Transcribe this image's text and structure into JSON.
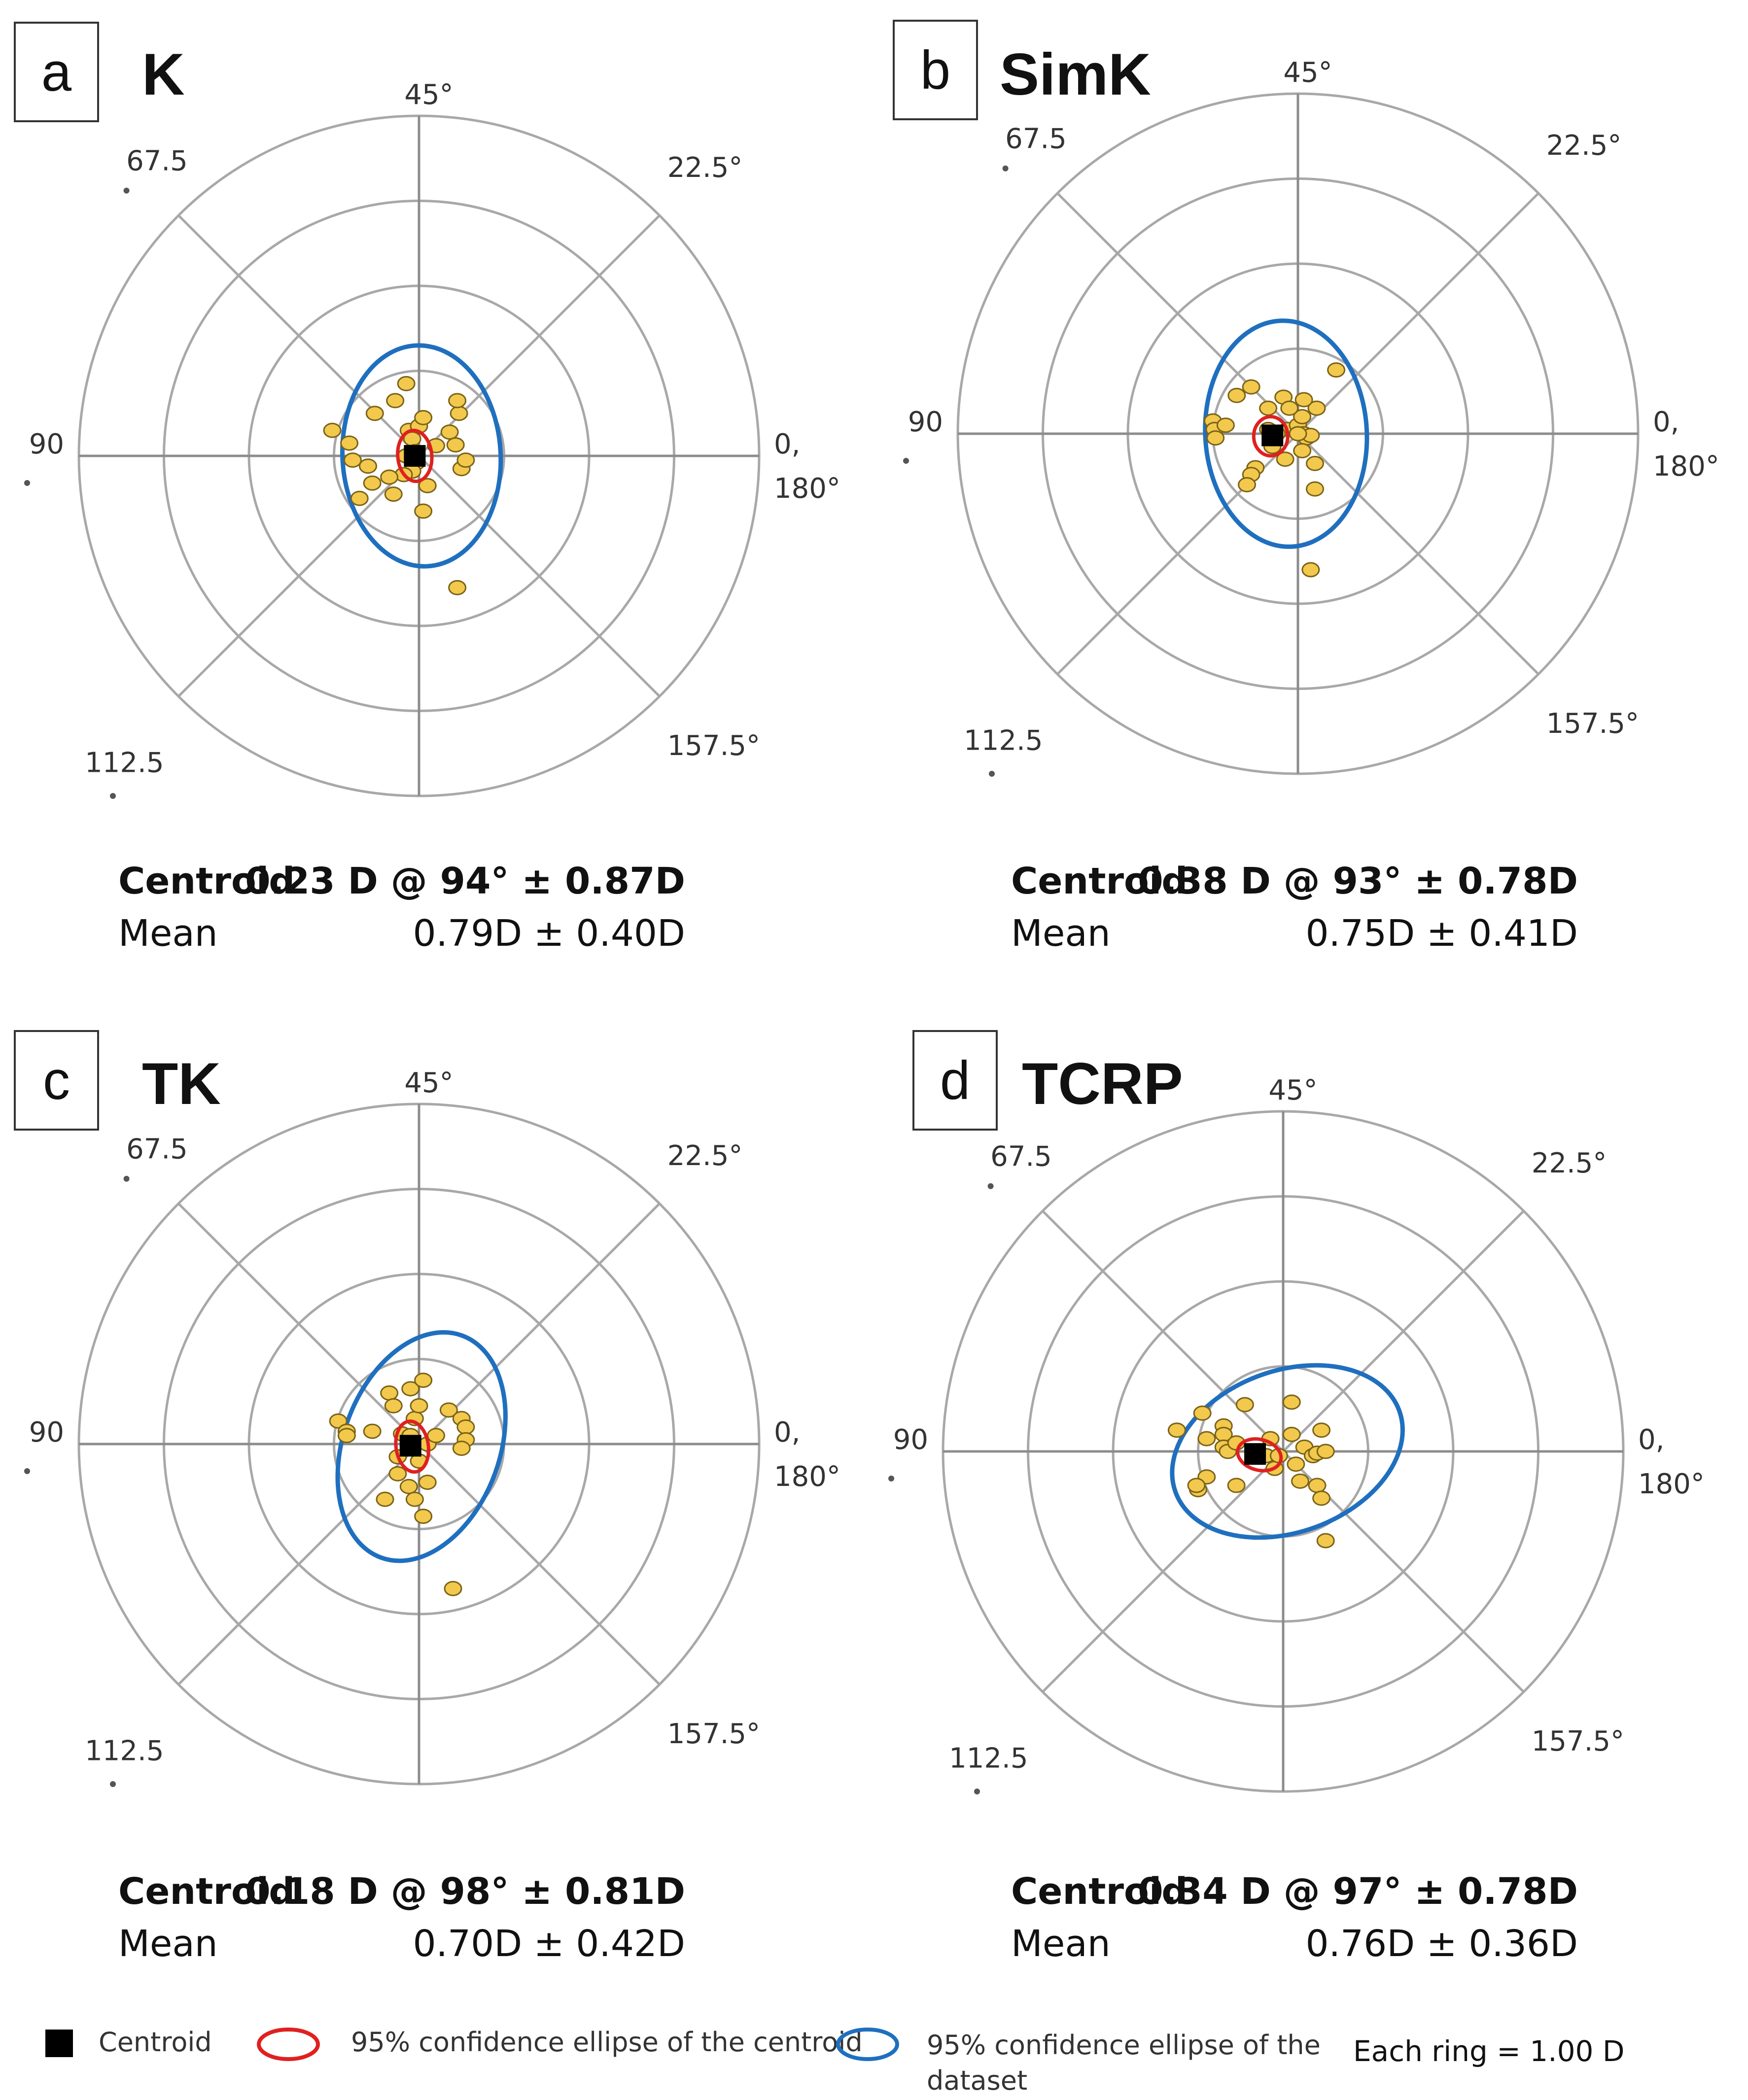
{
  "colors": {
    "grid": "#a8a8a8",
    "axis": "#8c8c8c",
    "point_fill": "#f2c94c",
    "point_stroke": "#7a6218",
    "centroid": "#000000",
    "ellipse_centroid": "#e02020",
    "ellipse_dataset": "#1f6fbf"
  },
  "legend": {
    "centroid": "Centroid",
    "centroid_ellipse": "95% confidence ellipse of the centroid",
    "dataset_ellipse_line1": "95% confidence ellipse of the",
    "dataset_ellipse_line2": "dataset",
    "ring_note": "Each ring = 1.00 D"
  },
  "chart_data": [
    {
      "type": "scatter",
      "subtype": "double-angle polar plot",
      "panel_letter": "a",
      "title": "K",
      "ring_step_D": 1.0,
      "rings": 4,
      "angle_labels": {
        "a45": "45°",
        "a22": "22.5°",
        "a0": "0,",
        "a180": "180°",
        "a157": "157.5°",
        "a112": "112.5",
        "a90": "90",
        "a67": "67.5"
      },
      "centroid_label": "Centroid",
      "centroid_value": "0.23 D @ 94° ± 0.87D",
      "mean_label": "Mean",
      "mean_value": "0.79D ± 0.40D",
      "centroid": {
        "x": -0.05,
        "y": 0.0
      },
      "centroid_ellipse": {
        "cx": -0.05,
        "cy": 0.0,
        "rx": 0.2,
        "ry": 0.3,
        "rot": -5
      },
      "dataset_ellipse": {
        "cx": 0.03,
        "cy": 0.0,
        "rx": 0.93,
        "ry": 1.3,
        "rot": -3
      },
      "points": [
        [
          -1.02,
          0.3
        ],
        [
          -0.82,
          0.15
        ],
        [
          -0.52,
          0.5
        ],
        [
          -0.28,
          0.65
        ],
        [
          -0.15,
          0.85
        ],
        [
          -0.12,
          0.3
        ],
        [
          -0.08,
          0.2
        ],
        [
          -0.05,
          0.05
        ],
        [
          -0.03,
          -0.08
        ],
        [
          -0.08,
          -0.18
        ],
        [
          -0.18,
          -0.22
        ],
        [
          -0.35,
          -0.25
        ],
        [
          -0.55,
          -0.32
        ],
        [
          -0.7,
          -0.5
        ],
        [
          -0.6,
          -0.12
        ],
        [
          -0.78,
          -0.05
        ],
        [
          0.0,
          0.35
        ],
        [
          0.05,
          0.45
        ],
        [
          0.2,
          0.12
        ],
        [
          0.1,
          -0.35
        ],
        [
          0.05,
          -0.65
        ],
        [
          0.36,
          0.28
        ],
        [
          0.43,
          0.13
        ],
        [
          0.47,
          0.5
        ],
        [
          0.45,
          0.65
        ],
        [
          0.5,
          -0.15
        ],
        [
          0.55,
          -0.05
        ],
        [
          -0.3,
          -0.45
        ],
        [
          0.45,
          -1.55
        ],
        [
          -0.15,
          -0.0
        ]
      ]
    },
    {
      "type": "scatter",
      "subtype": "double-angle polar plot",
      "panel_letter": "b",
      "title": "SimK",
      "ring_step_D": 1.0,
      "rings": 4,
      "angle_labels": {
        "a45": "45°",
        "a22": "22.5°",
        "a0": "0,",
        "a180": "180°",
        "a157": "157.5°",
        "a112": "112.5",
        "a90": "90",
        "a67": "67.5"
      },
      "centroid_label": "Centroid",
      "centroid_value": "0.38 D @ 93° ± 0.78D",
      "mean_label": "Mean",
      "mean_value": "0.75D ± 0.41D",
      "centroid": {
        "x": -0.3,
        "y": -0.02
      },
      "centroid_ellipse": {
        "cx": -0.32,
        "cy": -0.03,
        "rx": 0.2,
        "ry": 0.23,
        "rot": 0
      },
      "dataset_ellipse": {
        "cx": -0.14,
        "cy": 0.0,
        "rx": 0.95,
        "ry": 1.33,
        "rot": -3
      },
      "points": [
        [
          -1.0,
          0.15
        ],
        [
          -0.98,
          0.05
        ],
        [
          -0.97,
          -0.05
        ],
        [
          -0.85,
          0.1
        ],
        [
          -0.72,
          0.45
        ],
        [
          -0.55,
          0.55
        ],
        [
          -0.35,
          0.3
        ],
        [
          -0.35,
          0.05
        ],
        [
          -0.3,
          -0.15
        ],
        [
          -0.12,
          0.05
        ],
        [
          0.0,
          0.1
        ],
        [
          0.05,
          0.2
        ],
        [
          0.07,
          0.0
        ],
        [
          0.1,
          -0.05
        ],
        [
          0.05,
          -0.2
        ],
        [
          0.15,
          -0.02
        ],
        [
          0.22,
          0.3
        ],
        [
          0.2,
          -0.35
        ],
        [
          0.07,
          0.4
        ],
        [
          -0.5,
          -0.4
        ],
        [
          -0.55,
          -0.48
        ],
        [
          -0.6,
          -0.6
        ],
        [
          -0.15,
          -0.3
        ],
        [
          0.2,
          -0.65
        ],
        [
          0.15,
          -1.6
        ],
        [
          -0.17,
          0.43
        ],
        [
          0.0,
          -0.0
        ],
        [
          0.45,
          0.75
        ],
        [
          -0.25,
          0.0
        ],
        [
          -0.1,
          0.3
        ]
      ]
    },
    {
      "type": "scatter",
      "subtype": "double-angle polar plot",
      "panel_letter": "c",
      "title": "TK",
      "ring_step_D": 1.0,
      "rings": 4,
      "angle_labels": {
        "a45": "45°",
        "a22": "22.5°",
        "a0": "0,",
        "a180": "180°",
        "a157": "157.5°",
        "a112": "112.5",
        "a90": "90",
        "a67": "67.5"
      },
      "centroid_label": "Centroid",
      "centroid_value": "0.18 D @ 98° ± 0.81D",
      "mean_label": "Mean",
      "mean_value": "0.70D ± 0.42D",
      "centroid": {
        "x": -0.1,
        "y": -0.02
      },
      "centroid_ellipse": {
        "cx": -0.08,
        "cy": -0.03,
        "rx": 0.19,
        "ry": 0.3,
        "rot": -8
      },
      "dataset_ellipse": {
        "cx": 0.03,
        "cy": -0.03,
        "rx": 0.92,
        "ry": 1.39,
        "rot": 20
      },
      "points": [
        [
          -0.95,
          0.27
        ],
        [
          -0.85,
          0.15
        ],
        [
          -0.85,
          0.1
        ],
        [
          -0.55,
          0.15
        ],
        [
          -0.35,
          0.6
        ],
        [
          -0.3,
          0.45
        ],
        [
          -0.1,
          0.65
        ],
        [
          -0.05,
          0.3
        ],
        [
          0.0,
          0.45
        ],
        [
          0.1,
          0.0
        ],
        [
          0.2,
          0.1
        ],
        [
          0.35,
          0.4
        ],
        [
          0.5,
          0.3
        ],
        [
          0.55,
          0.2
        ],
        [
          0.55,
          0.05
        ],
        [
          0.5,
          -0.05
        ],
        [
          -0.25,
          -0.15
        ],
        [
          -0.25,
          -0.35
        ],
        [
          -0.12,
          -0.5
        ],
        [
          -0.05,
          -0.65
        ],
        [
          0.1,
          -0.45
        ],
        [
          0.05,
          -0.85
        ],
        [
          -0.4,
          -0.65
        ],
        [
          0.4,
          -1.7
        ],
        [
          0.05,
          0.75
        ],
        [
          -0.2,
          0.12
        ],
        [
          0.0,
          -0.2
        ],
        [
          -0.1,
          0.1
        ]
      ]
    },
    {
      "type": "scatter",
      "subtype": "double-angle polar plot",
      "panel_letter": "d",
      "title": "TCRP",
      "ring_step_D": 1.0,
      "rings": 4,
      "angle_labels": {
        "a45": "45°",
        "a22": "22.5°",
        "a0": "0,",
        "a180": "180°",
        "a157": "157.5°",
        "a112": "112.5",
        "a90": "90",
        "a67": "67.5"
      },
      "centroid_label": "Centroid",
      "centroid_value": "0.34 D @ 97° ± 0.78D",
      "mean_label": "Mean",
      "mean_value": "0.76D ± 0.36D",
      "centroid": {
        "x": -0.33,
        "y": -0.03
      },
      "centroid_ellipse": {
        "cx": -0.28,
        "cy": -0.04,
        "rx": 0.26,
        "ry": 0.18,
        "rot": 15
      },
      "dataset_ellipse": {
        "cx": 0.05,
        "cy": 0.0,
        "rx": 1.4,
        "ry": 0.95,
        "rot": -20
      },
      "points": [
        [
          -1.25,
          0.25
        ],
        [
          -0.9,
          0.15
        ],
        [
          -0.95,
          0.45
        ],
        [
          -0.7,
          0.3
        ],
        [
          -0.7,
          0.2
        ],
        [
          -0.7,
          0.05
        ],
        [
          -0.65,
          0.0
        ],
        [
          -0.55,
          0.1
        ],
        [
          -0.45,
          0.55
        ],
        [
          -0.2,
          -0.05
        ],
        [
          -0.15,
          0.15
        ],
        [
          0.1,
          0.58
        ],
        [
          0.1,
          0.2
        ],
        [
          0.15,
          -0.15
        ],
        [
          0.2,
          -0.35
        ],
        [
          0.25,
          0.05
        ],
        [
          0.35,
          -0.05
        ],
        [
          0.4,
          -0.02
        ],
        [
          0.4,
          -0.4
        ],
        [
          0.45,
          0.25
        ],
        [
          0.45,
          -0.55
        ],
        [
          0.5,
          0.0
        ],
        [
          0.5,
          -1.05
        ],
        [
          -0.9,
          -0.3
        ],
        [
          -1.0,
          -0.45
        ],
        [
          -1.02,
          -0.4
        ],
        [
          -0.55,
          -0.4
        ],
        [
          -0.1,
          -0.2
        ],
        [
          -0.05,
          -0.05
        ]
      ]
    }
  ]
}
